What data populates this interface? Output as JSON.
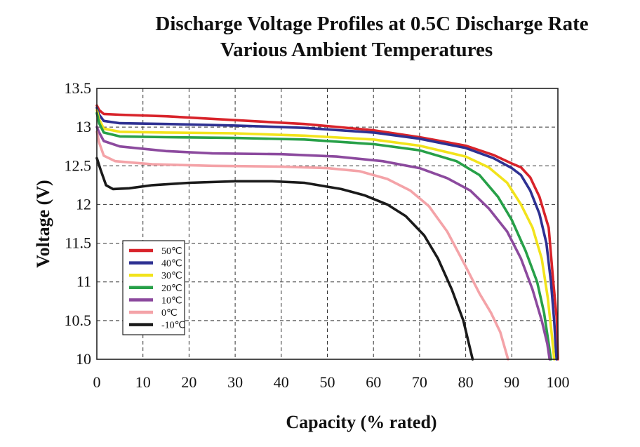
{
  "chart_data": {
    "type": "line",
    "title": "Discharge Voltage Profiles at 0.5C Discharge Rate",
    "subtitle": "Various Ambient Temperatures",
    "xlabel": "Capacity (% rated)",
    "ylabel": "Voltage (V)",
    "xlim": [
      0,
      100
    ],
    "ylim": [
      10,
      13.5
    ],
    "xticks": [
      "0",
      "10",
      "20",
      "30",
      "40",
      "50",
      "60",
      "70",
      "80",
      "90",
      "100"
    ],
    "yticks": [
      "10",
      "10.5",
      "11",
      "11.5",
      "12",
      "12.5",
      "13",
      "13.5"
    ],
    "grid": true,
    "legend_position": "lower-left",
    "series": [
      {
        "name": "50℃",
        "color": "#d8232a",
        "points": [
          [
            0,
            13.28
          ],
          [
            0.5,
            13.22
          ],
          [
            1.5,
            13.17
          ],
          [
            5,
            13.16
          ],
          [
            15,
            13.14
          ],
          [
            30,
            13.09
          ],
          [
            45,
            13.04
          ],
          [
            60,
            12.96
          ],
          [
            70,
            12.87
          ],
          [
            80,
            12.76
          ],
          [
            86,
            12.64
          ],
          [
            90,
            12.53
          ],
          [
            92,
            12.48
          ],
          [
            94,
            12.35
          ],
          [
            96,
            12.1
          ],
          [
            98,
            11.7
          ],
          [
            99,
            11.0
          ],
          [
            99.8,
            10.5
          ],
          [
            100,
            10.0
          ]
        ]
      },
      {
        "name": "40℃",
        "color": "#2e3192",
        "points": [
          [
            0,
            13.25
          ],
          [
            0.5,
            13.16
          ],
          [
            1.5,
            13.08
          ],
          [
            5,
            13.05
          ],
          [
            15,
            13.04
          ],
          [
            30,
            13.02
          ],
          [
            45,
            12.99
          ],
          [
            60,
            12.93
          ],
          [
            70,
            12.85
          ],
          [
            80,
            12.73
          ],
          [
            86,
            12.6
          ],
          [
            90,
            12.47
          ],
          [
            92,
            12.38
          ],
          [
            94,
            12.18
          ],
          [
            96,
            11.88
          ],
          [
            97.5,
            11.5
          ],
          [
            98.5,
            11.0
          ],
          [
            99.2,
            10.5
          ],
          [
            99.7,
            10.0
          ]
        ]
      },
      {
        "name": "30℃",
        "color": "#f2e31b",
        "points": [
          [
            0,
            13.22
          ],
          [
            0.5,
            13.1
          ],
          [
            1.5,
            12.98
          ],
          [
            5,
            12.94
          ],
          [
            15,
            12.93
          ],
          [
            30,
            12.92
          ],
          [
            45,
            12.89
          ],
          [
            60,
            12.84
          ],
          [
            70,
            12.76
          ],
          [
            80,
            12.62
          ],
          [
            85,
            12.48
          ],
          [
            89,
            12.28
          ],
          [
            92,
            12.0
          ],
          [
            94.5,
            11.7
          ],
          [
            96.5,
            11.3
          ],
          [
            97.8,
            10.8
          ],
          [
            98.7,
            10.3
          ],
          [
            99.2,
            10.0
          ]
        ]
      },
      {
        "name": "20℃",
        "color": "#27a048",
        "points": [
          [
            0,
            13.18
          ],
          [
            0.5,
            13.05
          ],
          [
            1.5,
            12.93
          ],
          [
            5,
            12.88
          ],
          [
            15,
            12.87
          ],
          [
            30,
            12.86
          ],
          [
            45,
            12.84
          ],
          [
            60,
            12.78
          ],
          [
            70,
            12.7
          ],
          [
            78,
            12.56
          ],
          [
            83,
            12.38
          ],
          [
            87,
            12.1
          ],
          [
            90,
            11.8
          ],
          [
            93,
            11.4
          ],
          [
            95.5,
            11.0
          ],
          [
            97,
            10.6
          ],
          [
            98,
            10.2
          ],
          [
            98.5,
            10.0
          ]
        ]
      },
      {
        "name": "10℃",
        "color": "#8c4a9e",
        "points": [
          [
            0,
            13.0
          ],
          [
            0.5,
            12.93
          ],
          [
            1.5,
            12.82
          ],
          [
            5,
            12.75
          ],
          [
            15,
            12.69
          ],
          [
            25,
            12.66
          ],
          [
            40,
            12.65
          ],
          [
            52,
            12.62
          ],
          [
            62,
            12.56
          ],
          [
            70,
            12.47
          ],
          [
            76,
            12.34
          ],
          [
            81,
            12.18
          ],
          [
            85,
            11.95
          ],
          [
            89,
            11.65
          ],
          [
            92,
            11.3
          ],
          [
            94.5,
            10.9
          ],
          [
            96.5,
            10.5
          ],
          [
            97.7,
            10.2
          ],
          [
            98.2,
            10.0
          ]
        ]
      },
      {
        "name": "0℃",
        "color": "#f4a3a8",
        "points": [
          [
            0,
            12.94
          ],
          [
            0.5,
            12.8
          ],
          [
            1.5,
            12.63
          ],
          [
            4,
            12.56
          ],
          [
            12,
            12.52
          ],
          [
            25,
            12.5
          ],
          [
            40,
            12.49
          ],
          [
            50,
            12.47
          ],
          [
            57,
            12.43
          ],
          [
            63,
            12.33
          ],
          [
            68,
            12.18
          ],
          [
            72,
            11.98
          ],
          [
            76,
            11.65
          ],
          [
            80,
            11.2
          ],
          [
            83,
            10.85
          ],
          [
            85.5,
            10.6
          ],
          [
            87.5,
            10.35
          ],
          [
            89.2,
            10.0
          ]
        ]
      },
      {
        "name": "-10℃",
        "color": "#1a1a1a",
        "points": [
          [
            0,
            12.6
          ],
          [
            0.8,
            12.45
          ],
          [
            2,
            12.25
          ],
          [
            3.5,
            12.2
          ],
          [
            7,
            12.21
          ],
          [
            12,
            12.25
          ],
          [
            20,
            12.28
          ],
          [
            30,
            12.3
          ],
          [
            38,
            12.3
          ],
          [
            45,
            12.28
          ],
          [
            53,
            12.2
          ],
          [
            58,
            12.12
          ],
          [
            63,
            12.0
          ],
          [
            67,
            11.85
          ],
          [
            71,
            11.6
          ],
          [
            74,
            11.3
          ],
          [
            77,
            10.9
          ],
          [
            79.5,
            10.5
          ],
          [
            81.5,
            10.0
          ]
        ]
      }
    ]
  }
}
